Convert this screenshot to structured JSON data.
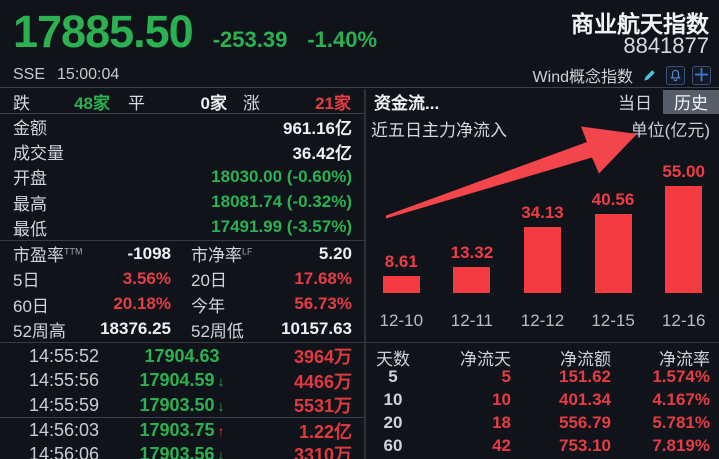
{
  "header": {
    "price": "17885.50",
    "change": "-253.39",
    "change_pct": "-1.40%",
    "index_name": "商业航天指数",
    "index_code": "8841877",
    "exchange": "SSE",
    "time": "15:00:04",
    "index_type_label": "Wind概念指数",
    "icons": [
      "pencil-edit",
      "bell-alert",
      "plus-add"
    ]
  },
  "market_stats": {
    "breadth": {
      "down_label": "跌",
      "down": "48家",
      "flat_label": "平",
      "flat": "0家",
      "up_label": "涨",
      "up": "21家"
    },
    "rows": [
      {
        "label": "金额",
        "value": "961.16亿"
      },
      {
        "label": "成交量",
        "value": "36.42亿"
      },
      {
        "label": "开盘",
        "value": "18030.00 (-0.60%)"
      },
      {
        "label": "最高",
        "value": "18081.74 (-0.32%)"
      },
      {
        "label": "最低",
        "value": "17491.99 (-3.57%)"
      }
    ],
    "pairs": [
      {
        "l1": "市盈率",
        "sup1": "TTM",
        "v1": "-1098",
        "l2": "市净率",
        "sup2": "LF",
        "v2": "5.20"
      },
      {
        "l1": "5日",
        "sup1": "",
        "v1": "3.56%",
        "l2": "20日",
        "sup2": "",
        "v2": "17.68%"
      },
      {
        "l1": "60日",
        "sup1": "",
        "v1": "20.18%",
        "l2": "今年",
        "sup2": "",
        "v2": "56.73%"
      },
      {
        "l1": "52周高",
        "sup1": "",
        "v1": "18376.25",
        "l2": "52周低",
        "sup2": "",
        "v2": "10157.63"
      }
    ]
  },
  "ticks": [
    {
      "time": "14:55:52",
      "price": "17904.63",
      "arrow": "",
      "amount": "3964万"
    },
    {
      "time": "14:55:56",
      "price": "17904.59",
      "arrow": "↓",
      "amount": "4466万"
    },
    {
      "time": "14:55:59",
      "price": "17903.50",
      "arrow": "↓",
      "amount": "5531万"
    },
    {
      "time": "14:56:03",
      "price": "17903.75",
      "arrow": "↑",
      "amount": "1.22亿"
    },
    {
      "time": "14:56:06",
      "price": "17903.56",
      "arrow": "↓",
      "amount": "3310万"
    }
  ],
  "fund_flow": {
    "title": "资金流...",
    "tabs": [
      {
        "label": "当日",
        "active": false
      },
      {
        "label": "历史",
        "active": true
      }
    ],
    "subtitle": "近五日主力净流入",
    "unit_label": "单位(亿元)"
  },
  "chart_data": {
    "type": "bar",
    "title": "近五日主力净流入",
    "ylabel": "亿元",
    "categories": [
      "12-10",
      "12-11",
      "12-12",
      "12-15",
      "12-16"
    ],
    "values": [
      8.61,
      13.32,
      34.13,
      40.56,
      55.0
    ],
    "value_labels": [
      "8.61",
      "13.32",
      "34.13",
      "40.56",
      "55.00"
    ],
    "ylim": [
      0,
      55
    ],
    "grid": false,
    "bar_color": "#f43b42"
  },
  "flow_table": {
    "headers": [
      "天数",
      "净流天",
      "净流额",
      "净流率"
    ],
    "rows": [
      [
        "5",
        "5",
        "151.62",
        "1.574%"
      ],
      [
        "10",
        "10",
        "401.34",
        "4.167%"
      ],
      [
        "20",
        "18",
        "556.79",
        "5.781%"
      ],
      [
        "60",
        "42",
        "753.10",
        "7.819%"
      ]
    ]
  },
  "colors": {
    "background": "#10131a",
    "up_red": "#e43d43",
    "down_green": "#2bb150",
    "bar_red": "#f43b42",
    "annotation_arrow": "#f2464c",
    "tab_active_bg": "#565e6a",
    "icon_blue": "#3f76d6",
    "icon_cyan": "#4ac3dc"
  }
}
